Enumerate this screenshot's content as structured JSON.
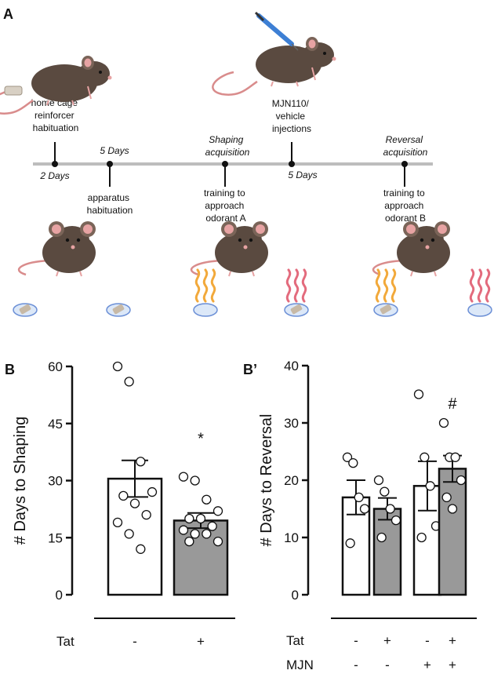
{
  "panel_a": {
    "letter": "A",
    "events_top": [
      {
        "lines": [
          "home cage",
          "reinforcer",
          "habituation"
        ],
        "tick": "2 Days"
      },
      {
        "lines": [
          "MJN110/",
          "vehicle",
          "injections"
        ],
        "tick": "5 Days"
      }
    ],
    "events_bottom": [
      {
        "lines": [
          "apparatus",
          "habituation"
        ],
        "tick": "5 Days"
      },
      {
        "lines": [
          "training to",
          "approach",
          "odorant A"
        ],
        "tick": "Shaping",
        "tick2": "acquisition"
      },
      {
        "lines": [
          "training to",
          "approach",
          "odorant B"
        ],
        "tick": "Reversal",
        "tick2": "acquisition"
      }
    ]
  },
  "colors": {
    "bar_white": "#ffffff",
    "bar_gray": "#999999",
    "axis": "#111111",
    "timeline": "#bdbdbd",
    "mouse": "#5a4a40",
    "odor_orange": "#f2a93b",
    "odor_pink": "#e36b7d",
    "dish": "#6b8fd6"
  },
  "chart_data": [
    {
      "type": "bar",
      "panel": "B",
      "ylabel": "# Days to Shaping",
      "ylim": [
        0,
        60
      ],
      "yticks": [
        0,
        15,
        30,
        45,
        60
      ],
      "row_labels": [
        "Tat"
      ],
      "categories": [
        {
          "rows": [
            "-"
          ],
          "value": 30.5,
          "sem": 4.8,
          "fill": "white",
          "points": [
            60,
            56,
            35,
            27,
            26,
            24,
            21,
            19,
            16,
            12
          ]
        },
        {
          "rows": [
            "+"
          ],
          "value": 19.5,
          "sem": 2.0,
          "fill": "gray",
          "sig": "*",
          "points": [
            31,
            30,
            25,
            22,
            20,
            20,
            18,
            17,
            16,
            16,
            14,
            14
          ]
        }
      ]
    },
    {
      "type": "bar",
      "panel": "B’",
      "ylabel": "# Days to Reversal",
      "ylim": [
        0,
        40
      ],
      "yticks": [
        0,
        10,
        20,
        30,
        40
      ],
      "row_labels": [
        "Tat",
        "MJN"
      ],
      "categories": [
        {
          "rows": [
            "-",
            "-"
          ],
          "value": 17,
          "sem": 3.0,
          "fill": "white",
          "points": [
            24,
            23,
            17,
            15,
            9
          ]
        },
        {
          "rows": [
            "+",
            "-"
          ],
          "value": 15,
          "sem": 1.9,
          "fill": "gray",
          "points": [
            20,
            18,
            15,
            13,
            10
          ]
        },
        {
          "rows": [
            "-",
            "+"
          ],
          "value": 19,
          "sem": 4.3,
          "fill": "white",
          "points": [
            35,
            24,
            19,
            12,
            10
          ]
        },
        {
          "rows": [
            "+",
            "+"
          ],
          "value": 22,
          "sem": 2.3,
          "fill": "gray",
          "sig": "#",
          "points": [
            30,
            24,
            24,
            20,
            17,
            15
          ]
        }
      ]
    }
  ]
}
